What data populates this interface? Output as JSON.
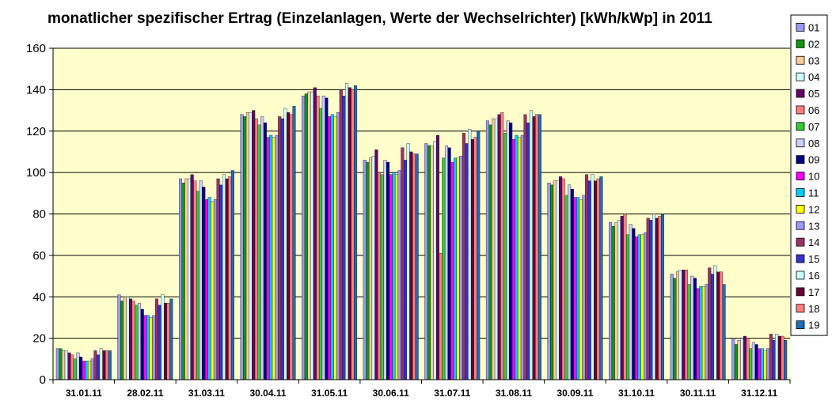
{
  "colors": {
    "plot_bg": "#ffffcc",
    "gridline": "#000000",
    "series": [
      "#9999ff",
      "#109910",
      "#ffcc99",
      "#ccffff",
      "#660066",
      "#ff8080",
      "#33cc33",
      "#ccccff",
      "#000080",
      "#ff00ff",
      "#00ccff",
      "#ffff00",
      "#9999ff",
      "#993366",
      "#3333cc",
      "#ccffff",
      "#660033",
      "#ff8080",
      "#1f6bb5"
    ]
  },
  "chart_data": {
    "type": "bar",
    "title": "monatlicher spezifischer Ertrag (Einzelanlagen, Werte der Wechselrichter) [kWh/kWp] in 2011",
    "xlabel": "",
    "ylabel": "",
    "ylim": [
      0,
      160
    ],
    "yticks": [
      "0",
      "20",
      "40",
      "60",
      "80",
      "100",
      "120",
      "140",
      "160"
    ],
    "grid": "horizontal",
    "legend_position": "right",
    "categories": [
      "31.01.11",
      "28.02.11",
      "31.03.11",
      "30.04.11",
      "31.05.11",
      "30.06.11",
      "31.07.11",
      "31.08.11",
      "30.09.11",
      "31.10.11",
      "30.11.11",
      "31.12.11"
    ],
    "series": [
      {
        "name": "01",
        "values": [
          15,
          41,
          97,
          128,
          137,
          106,
          114,
          125,
          95,
          76,
          51,
          20
        ]
      },
      {
        "name": "02",
        "values": [
          15,
          38,
          95,
          127,
          138,
          105,
          113,
          123,
          94,
          74,
          49,
          17
        ]
      },
      {
        "name": "03",
        "values": [
          14,
          40,
          97,
          129,
          139,
          107,
          113,
          126,
          96,
          76,
          52,
          19
        ]
      },
      {
        "name": "04",
        "values": [
          14,
          40,
          97,
          129,
          139,
          108,
          115,
          126,
          96,
          77,
          53,
          20
        ]
      },
      {
        "name": "05",
        "values": [
          13,
          39,
          99,
          130,
          141,
          111,
          118,
          128,
          98,
          79,
          53,
          21
        ]
      },
      {
        "name": "06",
        "values": [
          12,
          38,
          96,
          126,
          137,
          100,
          61,
          129,
          97,
          80,
          53,
          20
        ]
      },
      {
        "name": "07",
        "values": [
          10,
          36,
          91,
          123,
          131,
          99,
          107,
          119,
          89,
          70,
          46,
          15
        ]
      },
      {
        "name": "08",
        "values": [
          13,
          37,
          96,
          127,
          137,
          106,
          113,
          125,
          94,
          75,
          50,
          18
        ]
      },
      {
        "name": "09",
        "values": [
          11,
          34,
          93,
          124,
          136,
          105,
          112,
          124,
          92,
          73,
          49,
          17
        ]
      },
      {
        "name": "10",
        "values": [
          9,
          31,
          87,
          117,
          127,
          99,
          105,
          116,
          88,
          69,
          44,
          15
        ]
      },
      {
        "name": "11",
        "values": [
          9,
          31,
          88,
          118,
          128,
          100,
          107,
          118,
          88,
          70,
          45,
          15
        ]
      },
      {
        "name": "12",
        "values": [
          9,
          30,
          86,
          117,
          127,
          99,
          107,
          117,
          87,
          70,
          45,
          14
        ]
      },
      {
        "name": "13",
        "values": [
          10,
          31,
          87,
          118,
          129,
          101,
          108,
          118,
          89,
          71,
          46,
          15
        ]
      },
      {
        "name": "14",
        "values": [
          14,
          39,
          97,
          127,
          140,
          112,
          119,
          128,
          99,
          78,
          54,
          22
        ]
      },
      {
        "name": "15",
        "values": [
          12,
          36,
          94,
          126,
          137,
          106,
          114,
          124,
          96,
          77,
          51,
          19
        ]
      },
      {
        "name": "16",
        "values": [
          15,
          41,
          99,
          131,
          143,
          114,
          121,
          130,
          99,
          80,
          55,
          22
        ]
      },
      {
        "name": "17",
        "values": [
          14,
          37,
          97,
          129,
          141,
          110,
          116,
          127,
          96,
          78,
          52,
          21
        ]
      },
      {
        "name": "18",
        "values": [
          14,
          37,
          98,
          128,
          140,
          109,
          117,
          128,
          97,
          79,
          52,
          21
        ]
      },
      {
        "name": "19",
        "values": [
          14,
          39,
          101,
          132,
          142,
          109,
          120,
          128,
          98,
          80,
          46,
          19
        ]
      }
    ]
  }
}
